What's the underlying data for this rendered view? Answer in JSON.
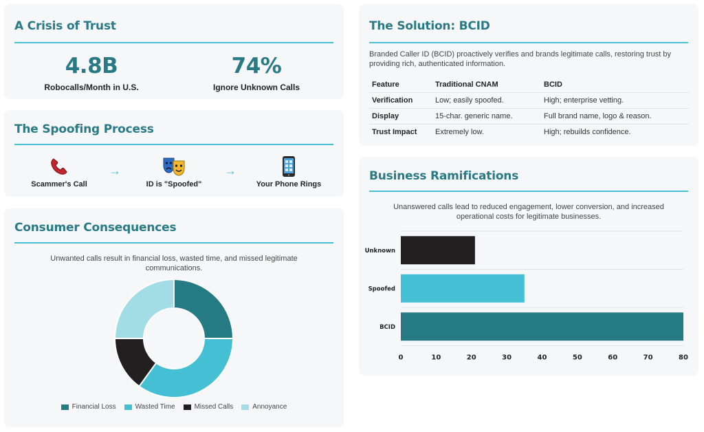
{
  "trust": {
    "title": "A Crisis of Trust",
    "stats": [
      {
        "value": "4.8B",
        "label": "Robocalls/Month in U.S."
      },
      {
        "value": "74%",
        "label": "Ignore Unknown Calls"
      }
    ]
  },
  "spoofing": {
    "title": "The Spoofing Process",
    "steps": [
      {
        "label": "Scammer's Call",
        "icon": "telephone-receiver-icon"
      },
      {
        "label": "ID is \"Spoofed\"",
        "icon": "performing-arts-masks-icon"
      },
      {
        "label": "Your Phone Rings",
        "icon": "mobile-phone-icon"
      }
    ],
    "arrow": "→"
  },
  "consumer": {
    "title": "Consumer Consequences",
    "description": "Unwanted calls result in financial loss, wasted time, and missed legitimate communications."
  },
  "solution": {
    "title": "The Solution: BCID",
    "description": "Branded Caller ID (BCID) proactively verifies and brands legitimate calls, restoring trust by providing rich, authenticated information.",
    "table": {
      "headers": [
        "Feature",
        "Traditional CNAM",
        "BCID"
      ],
      "rows": [
        [
          "Verification",
          "Low; easily spoofed.",
          "High; enterprise vetting."
        ],
        [
          "Display",
          "15-char. generic name.",
          "Full brand name, logo & reason."
        ],
        [
          "Trust Impact",
          "Extremely low.",
          "High; rebuilds confidence."
        ]
      ]
    }
  },
  "business": {
    "title": "Business Ramifications",
    "description": "Unanswered calls lead to reduced engagement, lower conversion, and increased operational costs for legitimate businesses."
  },
  "colors": {
    "teal_dark": "#257a83",
    "teal_light": "#45bfd3",
    "black": "#231f20",
    "pale_cyan": "#a2dde6",
    "title": "#2a7a85"
  },
  "chart_data": [
    {
      "type": "pie",
      "variant": "donut",
      "categories": [
        "Financial Loss",
        "Wasted Time",
        "Missed Calls",
        "Annoyance"
      ],
      "values": [
        25,
        35,
        15,
        25
      ],
      "colors": [
        "#257a83",
        "#45bfd3",
        "#231f20",
        "#a2dde6"
      ],
      "legend": "bottom"
    },
    {
      "type": "bar",
      "orientation": "horizontal",
      "categories": [
        "Unknown",
        "Spoofed",
        "BCID"
      ],
      "values": [
        21,
        35,
        80
      ],
      "colors": [
        "#231f20",
        "#45bfd3",
        "#257a83"
      ],
      "xlim": [
        0,
        80
      ],
      "xticks": [
        0,
        10,
        20,
        30,
        40,
        50,
        60,
        70,
        80
      ],
      "grid": true
    }
  ]
}
